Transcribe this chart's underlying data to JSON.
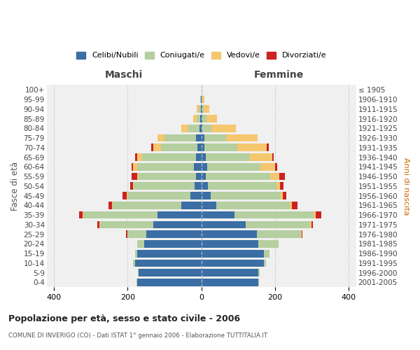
{
  "age_groups": [
    "0-4",
    "5-9",
    "10-14",
    "15-19",
    "20-24",
    "25-29",
    "30-34",
    "35-39",
    "40-44",
    "45-49",
    "50-54",
    "55-59",
    "60-64",
    "65-69",
    "70-74",
    "75-79",
    "80-84",
    "85-89",
    "90-94",
    "95-99",
    "100+"
  ],
  "birth_years": [
    "2001-2005",
    "1996-2000",
    "1991-1995",
    "1986-1990",
    "1981-1985",
    "1976-1980",
    "1971-1975",
    "1966-1970",
    "1961-1965",
    "1956-1960",
    "1951-1955",
    "1946-1950",
    "1941-1945",
    "1936-1940",
    "1931-1935",
    "1926-1930",
    "1921-1925",
    "1916-1920",
    "1911-1915",
    "1906-1910",
    "≤ 1905"
  ],
  "colors": {
    "celibi": "#3a6ea5",
    "coniugati": "#b5cfa0",
    "vedovi": "#f5c76e",
    "divorziati": "#cc2222"
  },
  "maschi": {
    "celibi": [
      175,
      170,
      180,
      175,
      155,
      150,
      130,
      120,
      55,
      30,
      18,
      15,
      20,
      15,
      10,
      15,
      5,
      3,
      2,
      1,
      0
    ],
    "coniugati": [
      2,
      3,
      5,
      5,
      20,
      50,
      145,
      200,
      185,
      170,
      165,
      155,
      155,
      145,
      100,
      85,
      30,
      10,
      5,
      2,
      0
    ],
    "vedovi": [
      0,
      0,
      0,
      0,
      0,
      0,
      2,
      2,
      2,
      2,
      3,
      5,
      10,
      15,
      20,
      20,
      20,
      10,
      5,
      0,
      0
    ],
    "divorziati": [
      0,
      0,
      0,
      0,
      0,
      5,
      5,
      10,
      10,
      12,
      8,
      15,
      5,
      5,
      6,
      0,
      0,
      0,
      0,
      0,
      0
    ]
  },
  "femmine": {
    "celibi": [
      155,
      155,
      170,
      170,
      155,
      150,
      120,
      90,
      40,
      25,
      18,
      12,
      15,
      12,
      8,
      8,
      3,
      3,
      2,
      1,
      0
    ],
    "coniugati": [
      2,
      3,
      5,
      15,
      55,
      120,
      175,
      215,
      200,
      190,
      185,
      175,
      145,
      120,
      90,
      60,
      25,
      10,
      5,
      2,
      0
    ],
    "vedovi": [
      0,
      0,
      0,
      0,
      0,
      2,
      3,
      5,
      5,
      5,
      10,
      25,
      40,
      60,
      80,
      85,
      65,
      30,
      15,
      5,
      0
    ],
    "divorziati": [
      0,
      0,
      0,
      0,
      0,
      2,
      5,
      15,
      15,
      10,
      10,
      15,
      5,
      5,
      5,
      0,
      0,
      0,
      0,
      0,
      0
    ]
  },
  "xlim": 420,
  "title": "Popolazione per età, sesso e stato civile - 2006",
  "subtitle": "COMUNE DI INVERIGO (CO) - Dati ISTAT 1° gennaio 2006 - Elaborazione TUTTITALIA.IT",
  "ylabel_left": "Fasce di età",
  "ylabel_right": "Anni di nascita",
  "xlabel_left": "Maschi",
  "xlabel_right": "Femmine",
  "bg_color": "#f0f0f0",
  "grid_color": "#cccccc"
}
